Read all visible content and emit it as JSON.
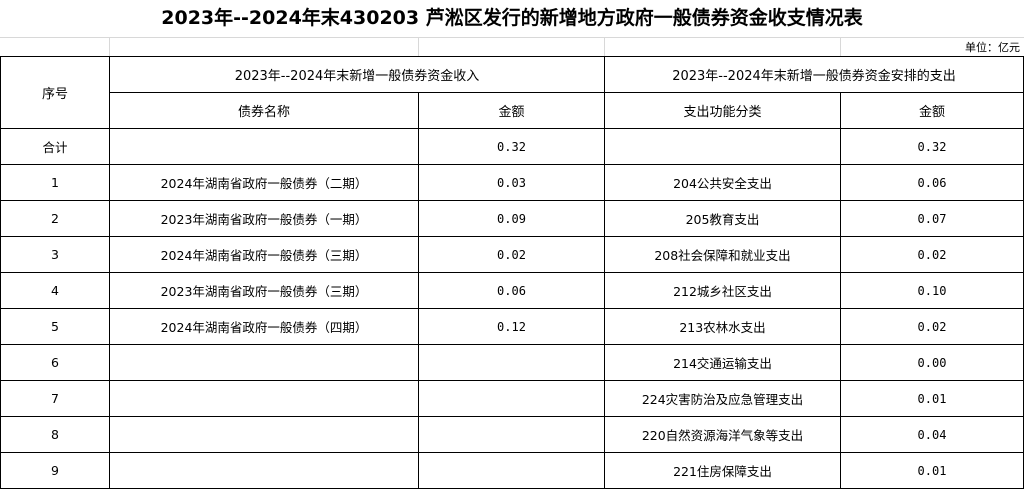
{
  "title": "2023年--2024年末430203 芦淞区发行的新增地方政府一般债券资金收支情况表",
  "unit": "单位：亿元",
  "header": {
    "seq": "序号",
    "income_group": "2023年--2024年末新增一般债券资金收入",
    "expense_group": "2023年--2024年末新增一般债券资金安排的支出",
    "bond_name": "债券名称",
    "income_amount": "金额",
    "expense_category": "支出功能分类",
    "expense_amount": "金额"
  },
  "rows": [
    {
      "seq": "合计",
      "bond": "",
      "income": "0.32",
      "category": "",
      "expense": "0.32"
    },
    {
      "seq": "1",
      "bond": "2024年湖南省政府一般债券（二期）",
      "income": "0.03",
      "category": "204公共安全支出",
      "expense": "0.06"
    },
    {
      "seq": "2",
      "bond": "2023年湖南省政府一般债券（一期）",
      "income": "0.09",
      "category": "205教育支出",
      "expense": "0.07"
    },
    {
      "seq": "3",
      "bond": "2024年湖南省政府一般债券（三期）",
      "income": "0.02",
      "category": "208社会保障和就业支出",
      "expense": "0.02"
    },
    {
      "seq": "4",
      "bond": "2023年湖南省政府一般债券（三期）",
      "income": "0.06",
      "category": "212城乡社区支出",
      "expense": "0.10"
    },
    {
      "seq": "5",
      "bond": "2024年湖南省政府一般债券（四期）",
      "income": "0.12",
      "category": "213农林水支出",
      "expense": "0.02"
    },
    {
      "seq": "6",
      "bond": "",
      "income": "",
      "category": "214交通运输支出",
      "expense": "0.00"
    },
    {
      "seq": "7",
      "bond": "",
      "income": "",
      "category": "224灾害防治及应急管理支出",
      "expense": "0.01"
    },
    {
      "seq": "8",
      "bond": "",
      "income": "",
      "category": "220自然资源海洋气象等支出",
      "expense": "0.04"
    },
    {
      "seq": "9",
      "bond": "",
      "income": "",
      "category": "221住房保障支出",
      "expense": "0.01"
    }
  ]
}
